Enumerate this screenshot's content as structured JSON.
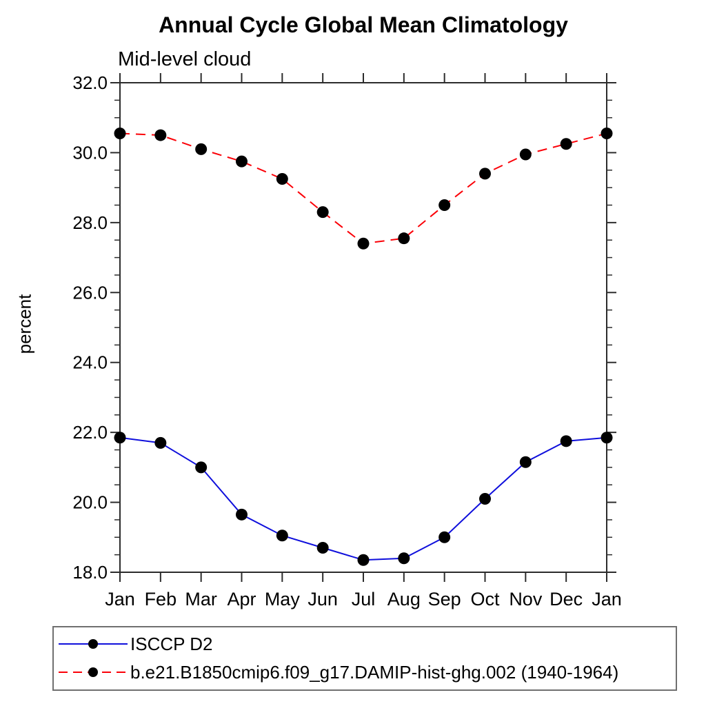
{
  "chart_data": {
    "type": "line",
    "title": "Annual Cycle Global Mean Climatology",
    "subtitle": "Mid-level cloud",
    "xlabel": "",
    "ylabel": "percent",
    "categories": [
      "Jan",
      "Feb",
      "Mar",
      "Apr",
      "May",
      "Jun",
      "Jul",
      "Aug",
      "Sep",
      "Oct",
      "Nov",
      "Dec",
      "Jan"
    ],
    "ylim": [
      18.0,
      32.0
    ],
    "ytick_step": 2.0,
    "ytick_minor_step": 0.5,
    "ytick_labels": [
      "18.0",
      "20.0",
      "22.0",
      "24.0",
      "26.0",
      "28.0",
      "30.0",
      "32.0"
    ],
    "grid": false,
    "legend_position": "bottom-left-box",
    "marker": "filled-circle",
    "marker_color": "#000000",
    "axis_color": "#2b2b2b",
    "background_color": "#ffffff",
    "series": [
      {
        "name": "ISCCP D2",
        "color": "#0f0fdc",
        "line_style": "solid",
        "values": [
          21.85,
          21.7,
          21.0,
          19.65,
          19.05,
          18.7,
          18.35,
          18.4,
          19.0,
          20.1,
          21.15,
          21.75,
          21.85
        ]
      },
      {
        "name": "b.e21.B1850cmip6.f09_g17.DAMIP-hist-ghg.002 (1940-1964)",
        "color": "#fb0007",
        "line_style": "dashed",
        "values": [
          30.55,
          30.5,
          30.1,
          29.75,
          29.25,
          28.3,
          27.4,
          27.55,
          28.5,
          29.4,
          29.95,
          30.25,
          30.55
        ]
      }
    ]
  }
}
